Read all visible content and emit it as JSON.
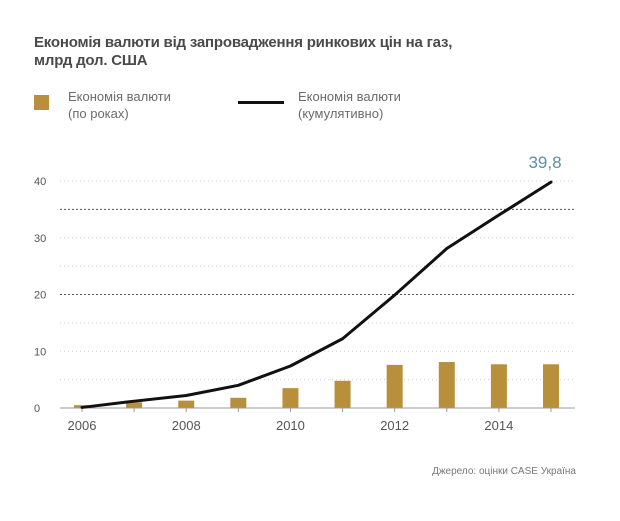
{
  "title": {
    "line1": "Економія валюти від запровадження ринкових цін на газ,",
    "line2": "млрд дол. США"
  },
  "legend": {
    "bar_line1": "Економія валюти",
    "bar_line2": "(по роках)",
    "line_line1": "Економія валюти",
    "line_line2": "(кумулятивно)"
  },
  "source": "Джерело: оцінки CASE Україна",
  "colors": {
    "bar": "#b88f3a",
    "line": "#111111",
    "label": "#5a8fa8"
  },
  "chart_data": {
    "type": "bar+line",
    "x": [
      2006,
      2007,
      2008,
      2009,
      2010,
      2011,
      2012,
      2013,
      2014,
      2015
    ],
    "x_tick_labels": [
      "2006",
      "2008",
      "2010",
      "2012",
      "2014"
    ],
    "y_tick_labels": [
      "0",
      "10",
      "20",
      "30",
      "40"
    ],
    "ylim": [
      0,
      45
    ],
    "series": [
      {
        "name": "Економія валюти (по роках)",
        "type": "bar",
        "values": [
          0.5,
          1.0,
          1.3,
          1.8,
          3.5,
          4.8,
          7.6,
          8.1,
          7.7,
          7.7
        ]
      },
      {
        "name": "Економія валюти (кумулятивно)",
        "type": "line",
        "values": [
          0.1,
          1.2,
          2.2,
          4.0,
          7.4,
          12.2,
          19.9,
          28.1,
          34.0,
          39.8
        ]
      }
    ],
    "end_label": "39,8",
    "dashed_gridlines_at": [
      20,
      35
    ]
  }
}
